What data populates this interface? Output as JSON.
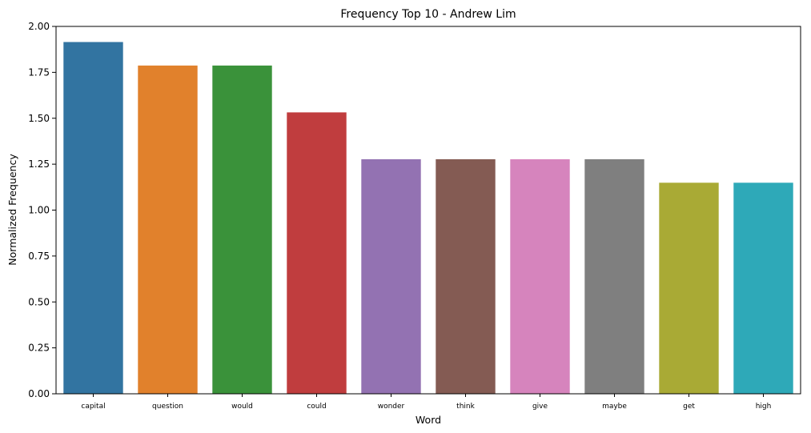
{
  "chart_data": {
    "type": "bar",
    "title": "Frequency Top 10 - Andrew Lim",
    "xlabel": "Word",
    "ylabel": "Normalized Frequency",
    "categories": [
      "capital",
      "question",
      "would",
      "could",
      "wonder",
      "think",
      "give",
      "maybe",
      "get",
      "high"
    ],
    "values": [
      1.915,
      1.787,
      1.787,
      1.532,
      1.277,
      1.277,
      1.277,
      1.277,
      1.149,
      1.149
    ],
    "colors": [
      "#3274a1",
      "#e1812c",
      "#3a923a",
      "#c03d3e",
      "#9372b2",
      "#845b53",
      "#d684bd",
      "#7f7f7f",
      "#a9aa35",
      "#2ea9b8"
    ],
    "ylim": [
      0,
      2.0
    ],
    "yticks": [
      "0.00",
      "0.25",
      "0.50",
      "0.75",
      "1.00",
      "1.25",
      "1.50",
      "1.75",
      "2.00"
    ],
    "grid": false,
    "legend": "none"
  }
}
